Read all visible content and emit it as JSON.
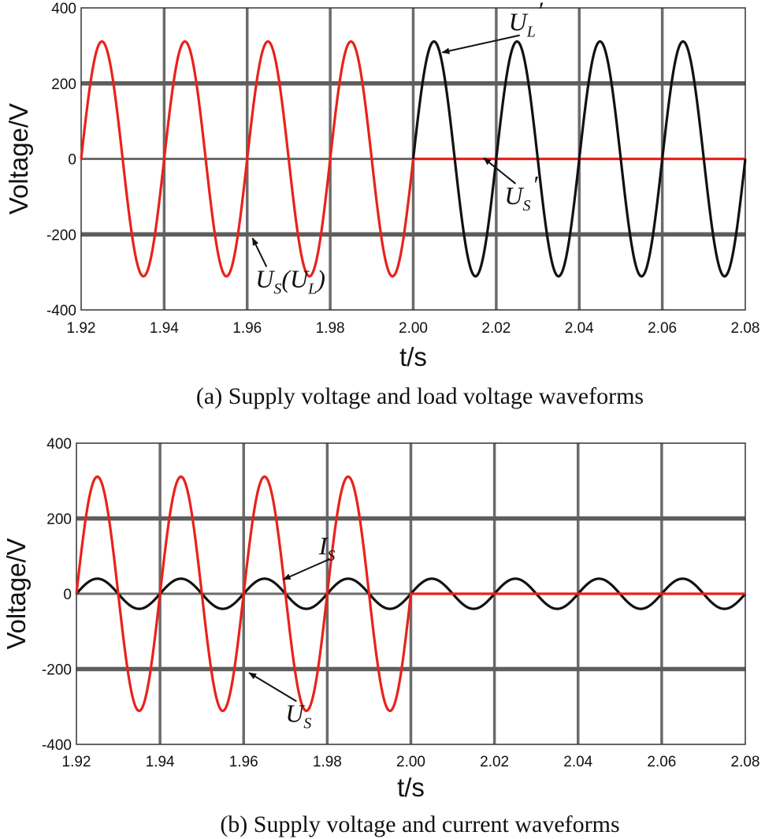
{
  "chart_data": [
    {
      "type": "line",
      "caption": "(a) Supply voltage and load voltage waveforms",
      "xlabel": "t/s",
      "ylabel": "Voltage/V",
      "xlim": [
        1.92,
        2.08
      ],
      "ylim": [
        -400,
        400
      ],
      "x_ticks": [
        "1.92",
        "1.94",
        "1.96",
        "1.98",
        "2.00",
        "2.02",
        "2.04",
        "2.06",
        "2.08"
      ],
      "y_ticks": [
        "400",
        "200",
        "0",
        "-200",
        "-400"
      ],
      "grid": true,
      "series": [
        {
          "color": "#e8221b",
          "frequency_hz": 50,
          "amplitude": 311,
          "waveform": "sine",
          "segments": [
            {
              "x_range": [
                1.92,
                2.0
              ],
              "mode": "sine"
            },
            {
              "x_range": [
                2.0,
                2.08
              ],
              "mode": "constant",
              "value": 0
            }
          ]
        },
        {
          "color": "#111111",
          "frequency_hz": 50,
          "amplitude": 311,
          "waveform": "sine",
          "segments": [
            {
              "x_range": [
                2.0,
                2.08
              ],
              "mode": "sine"
            }
          ]
        }
      ],
      "annotations": [
        {
          "text": "U",
          "sub": "S",
          "after": "(U",
          "sub2": "L",
          "close": ")",
          "x": 1.962,
          "y": -340,
          "arrow_to": [
            1.9613,
            -210
          ]
        },
        {
          "text": "U",
          "sub": "L",
          "prime": "′",
          "x": 2.023,
          "y": 340,
          "arrow_to": [
            2.007,
            282
          ]
        },
        {
          "text": "U",
          "sub": "S",
          "prime": "′",
          "x": 2.022,
          "y": -120,
          "arrow_to": [
            2.017,
            2
          ]
        }
      ]
    },
    {
      "type": "line",
      "caption": "(b) Supply voltage and current waveforms",
      "xlabel": "t/s",
      "ylabel": "Voltage/V",
      "xlim": [
        1.92,
        2.08
      ],
      "ylim": [
        -400,
        400
      ],
      "x_ticks": [
        "1.92",
        "1.94",
        "1.96",
        "1.98",
        "2.00",
        "2.02",
        "2.04",
        "2.06",
        "2.08"
      ],
      "y_ticks": [
        "400",
        "200",
        "0",
        "-200",
        "-400"
      ],
      "grid": true,
      "series": [
        {
          "color": "#111111",
          "frequency_hz": 50,
          "amplitude": 40,
          "waveform": "sine",
          "segments": [
            {
              "x_range": [
                1.92,
                2.08
              ],
              "mode": "sine"
            }
          ]
        },
        {
          "color": "#e8221b",
          "frequency_hz": 50,
          "amplitude": 311,
          "waveform": "sine",
          "segments": [
            {
              "x_range": [
                1.92,
                2.0
              ],
              "mode": "sine"
            },
            {
              "x_range": [
                2.0,
                2.08
              ],
              "mode": "constant",
              "value": 0
            }
          ]
        }
      ],
      "annotations": [
        {
          "text": "I",
          "sub": "S",
          "x": 1.978,
          "y": 105,
          "arrow_to": [
            1.9695,
            38
          ]
        },
        {
          "text": "U",
          "sub": "S",
          "x": 1.97,
          "y": -340,
          "arrow_to": [
            1.9613,
            -210
          ]
        }
      ]
    }
  ]
}
